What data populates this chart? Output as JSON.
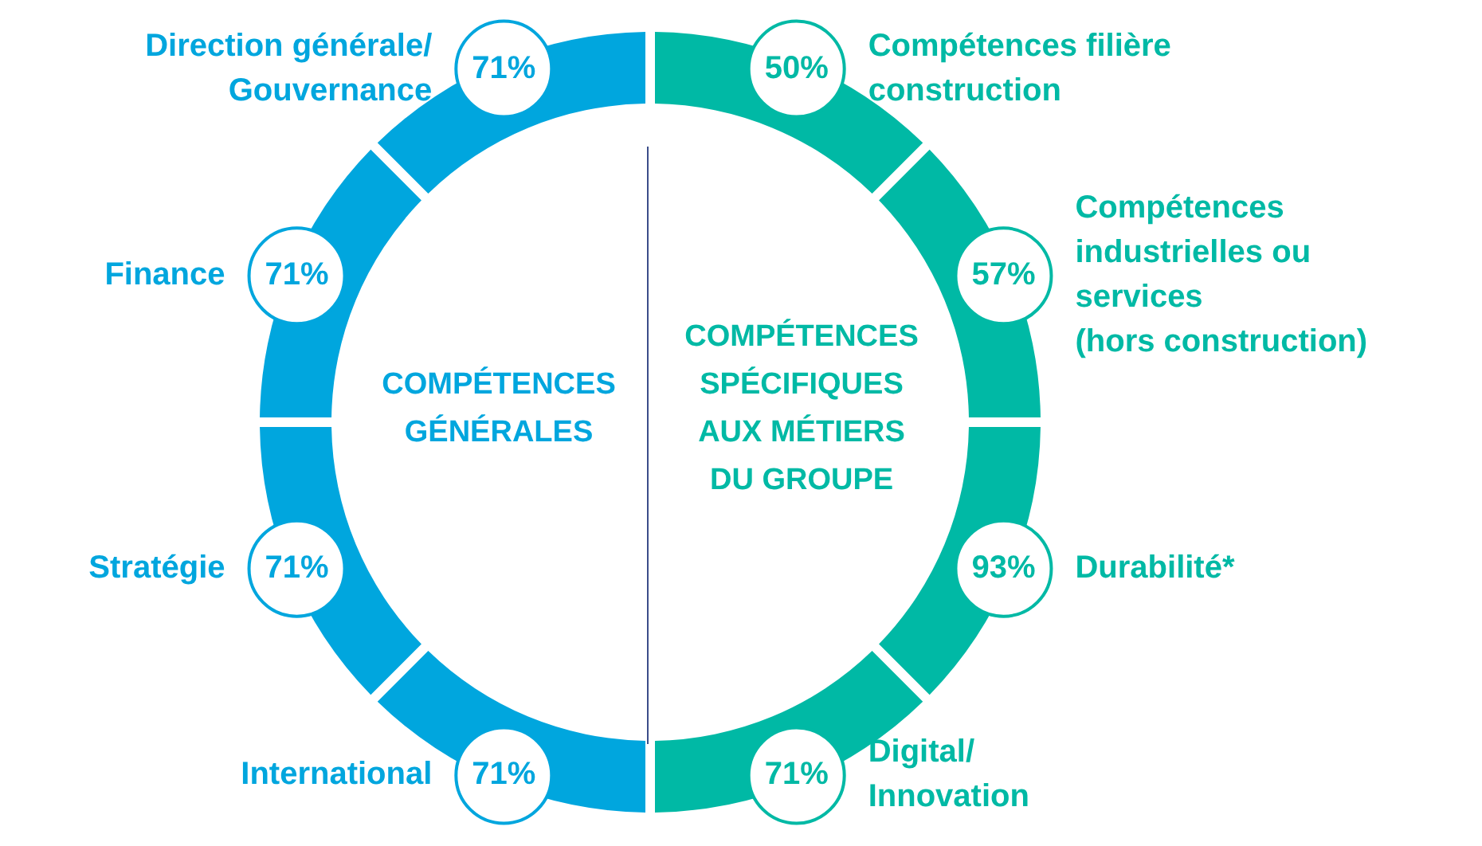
{
  "chart_data": {
    "type": "other",
    "categories": [
      "Compétences filière\nconstruction",
      "Compétences\nindustrielles ou\nservices\n(hors construction)",
      "Durabilité*",
      "Digital/\nInnovation",
      "International",
      "Stratégie",
      "Finance",
      "Direction générale/\nGouvernance"
    ],
    "values": [
      50,
      57,
      93,
      71,
      71,
      71,
      71,
      71
    ],
    "value_labels": [
      "50%",
      "57%",
      "93%",
      "71%",
      "71%",
      "71%",
      "71%",
      "71%"
    ],
    "colors": [
      "#00b9a5",
      "#00b9a5",
      "#00b9a5",
      "#00b9a5",
      "#00a6de",
      "#00a6de",
      "#00a6de",
      "#00a6de"
    ],
    "annotations": [
      "COMPÉTENCES\nGÉNÉRALES",
      "COMPÉTENCES\nSPÉCIFIQUES\nAUX MÉTIERS\nDU GROUPE"
    ]
  }
}
